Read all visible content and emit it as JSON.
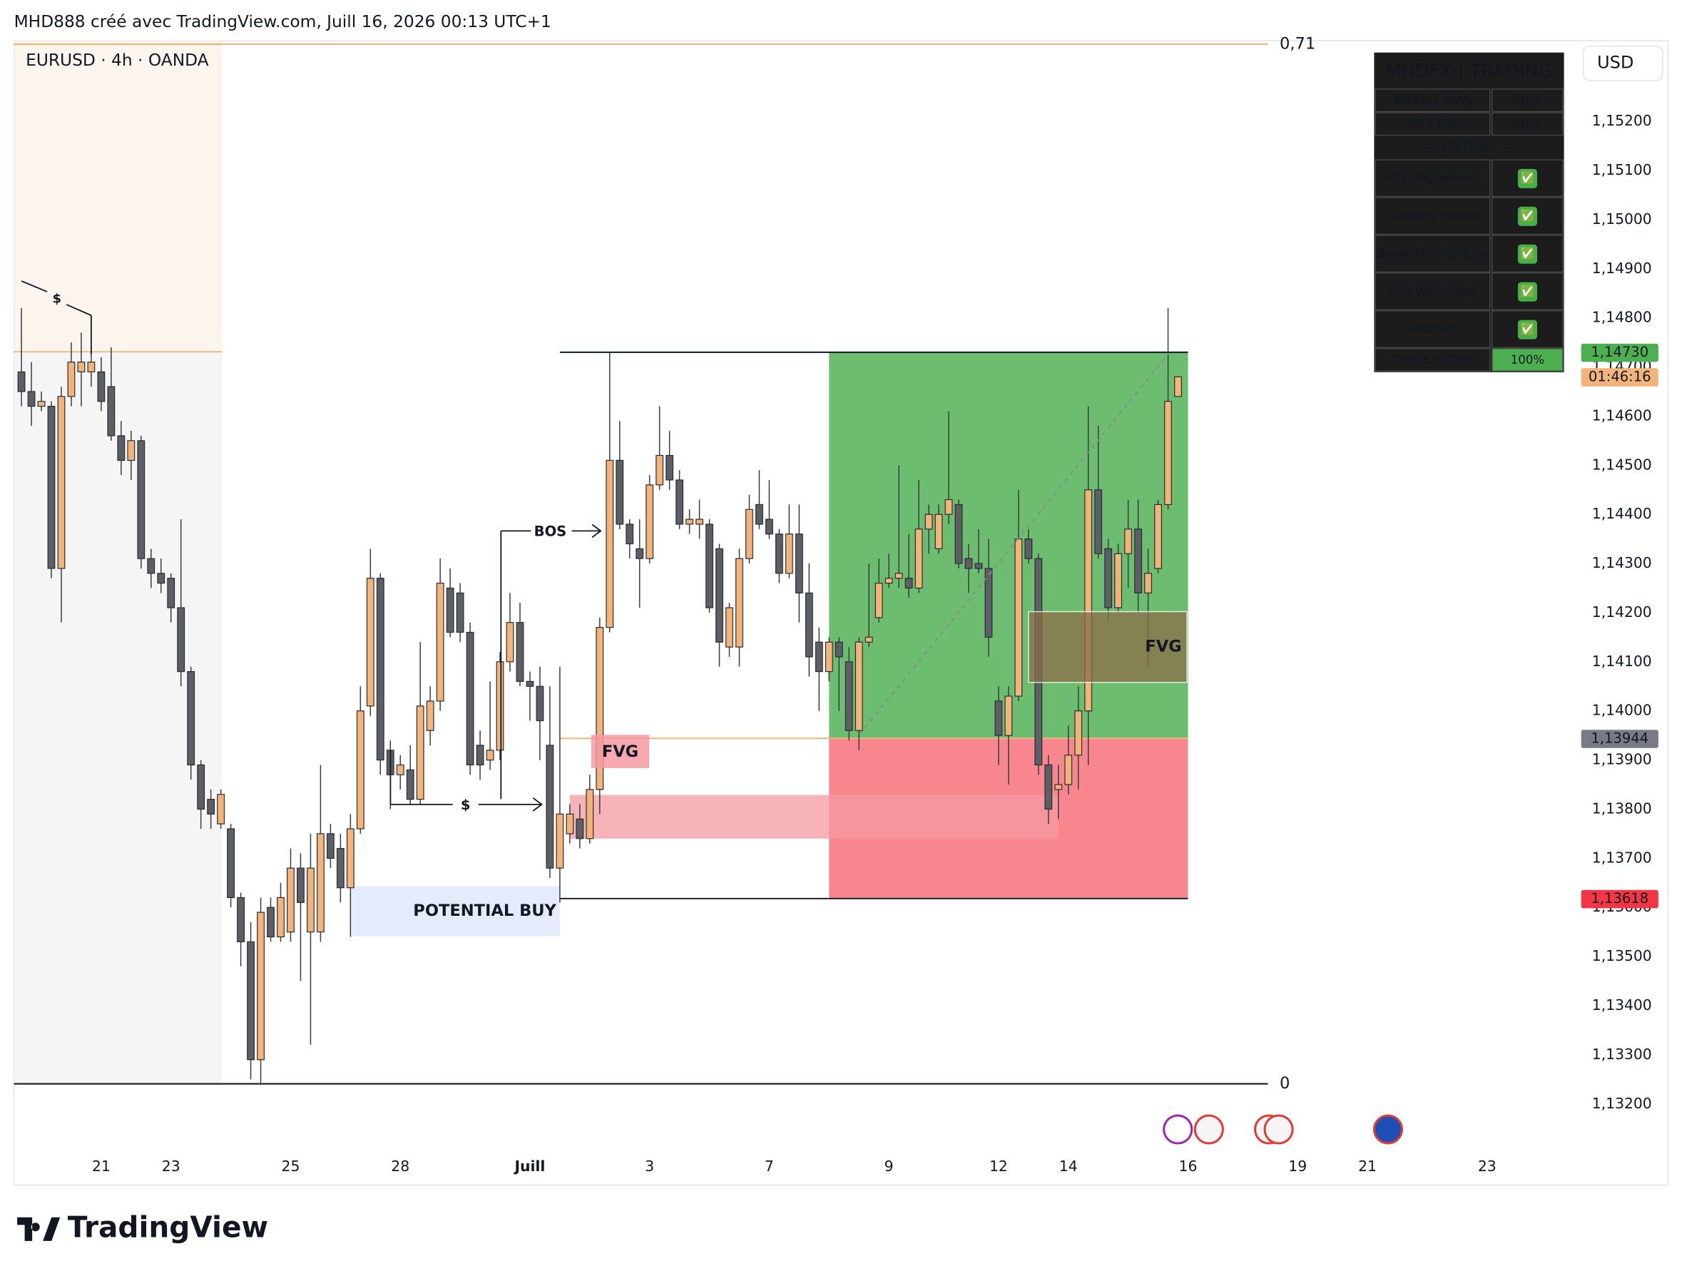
{
  "header": "MHD888 créé avec TradingView.com, Juill 16, 2026 00:13 UTC+1",
  "footer": "TradingView",
  "chart_data": {
    "type": "candlestick",
    "symbol": "EURUSD · 4h · OANDA",
    "currency": "USD",
    "up_color": "#f2b47a",
    "down_color": "#5d5f66",
    "open": [
      1.1469,
      1.1465,
      1.1462,
      1.1462,
      1.1429,
      1.1464,
      1.1469,
      1.1469,
      1.1469,
      1.1466,
      1.1456,
      1.1451,
      1.1455,
      1.1431,
      1.1428,
      1.1427,
      1.1421,
      1.1408,
      1.1389,
      1.1382,
      1.1377,
      1.1376,
      1.1362,
      1.1353,
      1.1329,
      1.136,
      1.1354,
      1.1355,
      1.1368,
      1.1355,
      1.1355,
      1.1375,
      1.1372,
      1.1364,
      1.1376,
      1.1401,
      1.1427,
      1.1392,
      1.1387,
      1.1388,
      1.1382,
      1.1396,
      1.1402,
      1.1425,
      1.1424,
      1.1416,
      1.1393,
      1.139,
      1.1392,
      1.141,
      1.1418,
      1.1406,
      1.1405,
      1.1393,
      1.1368,
      1.1375,
      1.1378,
      1.1374,
      1.1384,
      1.1417,
      1.1451,
      1.1438,
      1.1433,
      1.1431,
      1.1446,
      1.1452,
      1.1447,
      1.1438,
      1.1438,
      1.1438,
      1.1433,
      1.1413,
      1.1413,
      1.1431,
      1.1442,
      1.1439,
      1.1436,
      1.1428,
      1.1436,
      1.1424,
      1.1414,
      1.1408,
      1.1414,
      1.141,
      1.1396,
      1.1414,
      1.1419,
      1.1426,
      1.1427,
      1.1427,
      1.1425,
      1.1437,
      1.1433,
      1.144,
      1.1442,
      1.1431,
      1.143,
      1.1429,
      1.1402,
      1.1395,
      1.1403,
      1.1435,
      1.1431,
      1.1389,
      1.1384,
      1.1385,
      1.1391,
      1.14,
      1.1445,
      1.1433,
      1.1421,
      1.1432,
      1.1437,
      1.1424,
      1.1429,
      1.1442,
      1.1464
    ],
    "high": [
      1.1482,
      1.1471,
      1.1465,
      1.1463,
      1.1466,
      1.1475,
      1.1477,
      1.1474,
      1.1472,
      1.1474,
      1.1459,
      1.1457,
      1.1456,
      1.1433,
      1.1431,
      1.1428,
      1.1439,
      1.1409,
      1.139,
      1.1384,
      1.1384,
      1.1377,
      1.1363,
      1.1357,
      1.1362,
      1.1362,
      1.1365,
      1.1372,
      1.1371,
      1.1375,
      1.1389,
      1.1377,
      1.1375,
      1.1379,
      1.1405,
      1.1433,
      1.1428,
      1.1394,
      1.1391,
      1.1393,
      1.1414,
      1.1405,
      1.1431,
      1.1429,
      1.1426,
      1.1418,
      1.1396,
      1.1406,
      1.1412,
      1.1424,
      1.1422,
      1.1408,
      1.1409,
      1.1405,
      1.1409,
      1.1381,
      1.1381,
      1.1387,
      1.1419,
      1.1473,
      1.1459,
      1.1439,
      1.1439,
      1.1448,
      1.1462,
      1.1457,
      1.1449,
      1.1441,
      1.1443,
      1.1439,
      1.1434,
      1.1422,
      1.1433,
      1.1444,
      1.1449,
      1.1447,
      1.1437,
      1.1442,
      1.1442,
      1.143,
      1.1417,
      1.1415,
      1.1415,
      1.1413,
      1.1415,
      1.143,
      1.1431,
      1.1432,
      1.145,
      1.1436,
      1.1447,
      1.1442,
      1.1442,
      1.1461,
      1.1443,
      1.1434,
      1.1437,
      1.1435,
      1.1405,
      1.1405,
      1.1445,
      1.1437,
      1.1432,
      1.1391,
      1.1389,
      1.1397,
      1.1405,
      1.1462,
      1.1458,
      1.1435,
      1.1434,
      1.1443,
      1.1443,
      1.1433,
      1.1443,
      1.1482,
      1.1468
    ],
    "low": [
      1.1462,
      1.1458,
      1.1461,
      1.1427,
      1.1418,
      1.1462,
      1.1462,
      1.1466,
      1.1461,
      1.1455,
      1.1448,
      1.1447,
      1.1429,
      1.1425,
      1.1424,
      1.1418,
      1.1405,
      1.1386,
      1.1376,
      1.1376,
      1.1376,
      1.136,
      1.1348,
      1.1325,
      1.1324,
      1.1353,
      1.1353,
      1.1353,
      1.1345,
      1.1332,
      1.1353,
      1.1368,
      1.1361,
      1.1354,
      1.1375,
      1.1399,
      1.1387,
      1.138,
      1.1384,
      1.1381,
      1.1381,
      1.1393,
      1.14,
      1.1415,
      1.1414,
      1.1387,
      1.1386,
      1.1388,
      1.139,
      1.1408,
      1.1405,
      1.1398,
      1.139,
      1.1366,
      1.1361,
      1.1373,
      1.1372,
      1.1373,
      1.1379,
      1.1416,
      1.1437,
      1.1431,
      1.1421,
      1.143,
      1.1445,
      1.1445,
      1.1437,
      1.1436,
      1.1435,
      1.142,
      1.1409,
      1.1411,
      1.1409,
      1.143,
      1.1437,
      1.1435,
      1.1426,
      1.1427,
      1.1418,
      1.1407,
      1.14,
      1.1406,
      1.14,
      1.1394,
      1.1392,
      1.1413,
      1.1418,
      1.1425,
      1.1425,
      1.1423,
      1.1424,
      1.1432,
      1.1432,
      1.1438,
      1.1429,
      1.1424,
      1.1428,
      1.1411,
      1.1389,
      1.1385,
      1.1402,
      1.143,
      1.1387,
      1.1377,
      1.1378,
      1.1383,
      1.1384,
      1.1389,
      1.1431,
      1.1418,
      1.142,
      1.1425,
      1.142,
      1.1409,
      1.1428,
      1.1441,
      1.1464
    ],
    "close": [
      1.1465,
      1.1462,
      1.1463,
      1.1429,
      1.1464,
      1.1471,
      1.1471,
      1.1471,
      1.1463,
      1.1456,
      1.1451,
      1.1455,
      1.1431,
      1.1428,
      1.1426,
      1.1421,
      1.1408,
      1.1389,
      1.138,
      1.1379,
      1.1383,
      1.1362,
      1.1353,
      1.1329,
      1.1359,
      1.1354,
      1.1362,
      1.1368,
      1.1361,
      1.1368,
      1.1375,
      1.137,
      1.1364,
      1.1376,
      1.14,
      1.1427,
      1.139,
      1.1387,
      1.1389,
      1.1382,
      1.1401,
      1.1402,
      1.1426,
      1.1416,
      1.1416,
      1.1389,
      1.1389,
      1.1392,
      1.141,
      1.1418,
      1.1406,
      1.1405,
      1.1398,
      1.1368,
      1.1379,
      1.1379,
      1.1374,
      1.1384,
      1.1417,
      1.1451,
      1.1438,
      1.1434,
      1.1431,
      1.1446,
      1.1452,
      1.1447,
      1.1438,
      1.1439,
      1.1439,
      1.1421,
      1.1414,
      1.1421,
      1.1431,
      1.1441,
      1.1438,
      1.1436,
      1.1428,
      1.1436,
      1.1424,
      1.1411,
      1.1408,
      1.1414,
      1.1411,
      1.1396,
      1.1414,
      1.1415,
      1.1426,
      1.1427,
      1.1428,
      1.1425,
      1.1437,
      1.144,
      1.144,
      1.1443,
      1.143,
      1.1429,
      1.1429,
      1.1415,
      1.1395,
      1.1403,
      1.1435,
      1.1431,
      1.1389,
      1.138,
      1.1385,
      1.1391,
      1.14,
      1.1445,
      1.1432,
      1.1421,
      1.1432,
      1.1437,
      1.1424,
      1.1428,
      1.1442,
      1.1463,
      1.1468
    ],
    "xlim": [
      -0.75,
      156
    ],
    "xticks": [
      {
        "value": 8,
        "label": "21"
      },
      {
        "value": 15,
        "label": "23"
      },
      {
        "value": 27,
        "label": "25"
      },
      {
        "value": 38,
        "label": "28"
      },
      {
        "value": 51,
        "label": "Juill"
      },
      {
        "value": 63,
        "label": "3"
      },
      {
        "value": 75,
        "label": "7"
      },
      {
        "value": 87,
        "label": "9"
      },
      {
        "value": 98,
        "label": "12"
      },
      {
        "value": 105,
        "label": "14"
      },
      {
        "value": 117,
        "label": "16"
      },
      {
        "value": 128,
        "label": "19"
      },
      {
        "value": 135,
        "label": "21"
      },
      {
        "value": 147,
        "label": "23"
      }
    ],
    "ylim": [
      1.13111,
      1.15364
    ],
    "yticks": [
      {
        "value": 1.152,
        "label": "1,15200"
      },
      {
        "value": 1.151,
        "label": "1,15100"
      },
      {
        "value": 1.15,
        "label": "1,15000"
      },
      {
        "value": 1.149,
        "label": "1,14900"
      },
      {
        "value": 1.148,
        "label": "1,14800"
      },
      {
        "value": 1.147,
        "label": "1,14700"
      },
      {
        "value": 1.146,
        "label": "1,14600"
      },
      {
        "value": 1.145,
        "label": "1,14500"
      },
      {
        "value": 1.144,
        "label": "1,14400"
      },
      {
        "value": 1.143,
        "label": "1,14300"
      },
      {
        "value": 1.142,
        "label": "1,14200"
      },
      {
        "value": 1.141,
        "label": "1,14100"
      },
      {
        "value": 1.14,
        "label": "1,14000"
      },
      {
        "value": 1.139,
        "label": "1,13900"
      },
      {
        "value": 1.138,
        "label": "1,13800"
      },
      {
        "value": 1.137,
        "label": "1,13700"
      },
      {
        "value": 1.136,
        "label": "1,13600"
      },
      {
        "value": 1.135,
        "label": "1,13500"
      },
      {
        "value": 1.134,
        "label": "1,13400"
      },
      {
        "value": 1.133,
        "label": "1,13300"
      },
      {
        "value": 1.132,
        "label": "1,13200"
      }
    ],
    "price_labels": [
      {
        "value": 1.1473,
        "label": "1,14730",
        "color": "#4caf50"
      },
      {
        "value": 1.13944,
        "label": "1,13944",
        "color": "#787b86"
      },
      {
        "value": 1.13618,
        "label": "1,13618",
        "color": "#f23645"
      }
    ],
    "countdown": "01:46:16",
    "fib_levels": [
      {
        "value": 1.15357,
        "label": "0,71"
      },
      {
        "value": 1.13241,
        "label": "0"
      }
    ],
    "position": {
      "entry": 1.13944,
      "target": 1.1473,
      "stop": 1.13618,
      "start": 81,
      "end": 117,
      "lines_from": 54
    },
    "zones": [
      {
        "label": "FVG",
        "from": 55,
        "to": 104,
        "top": 1.13829,
        "bottom": 1.1374,
        "color": "#f59aa1"
      },
      {
        "label": "FVG",
        "from": 101,
        "to": 116.9,
        "top": 1.14202,
        "bottom": 1.14058,
        "color": "#8c6e48"
      },
      {
        "label": "POTENTIAL BUY",
        "from": 33,
        "to": 54,
        "top": 1.13643,
        "bottom": 1.13541,
        "color": "#dbe6fa"
      }
    ],
    "annotations": [
      "BOS",
      "$",
      "$"
    ]
  },
  "table": {
    "title": "MHDFX | TRADING",
    "bias": [
      [
        "WEEKLY BIAS",
        "BULL"
      ],
      [
        "DAILY BIAS",
        "BULL"
      ]
    ],
    "criteria_header": "--- CRITERIA ---",
    "criteria": [
      [
        "HTF Alignement",
        "✅"
      ],
      [
        "Liquidity Sweep",
        "✅"
      ],
      [
        "Break Of Structure",
        "✅"
      ],
      [
        "Fair Value Gap",
        "✅"
      ],
      [
        "Fibonacci",
        "✅"
      ]
    ],
    "score": [
      "TRADE SCORE",
      "100%"
    ]
  }
}
